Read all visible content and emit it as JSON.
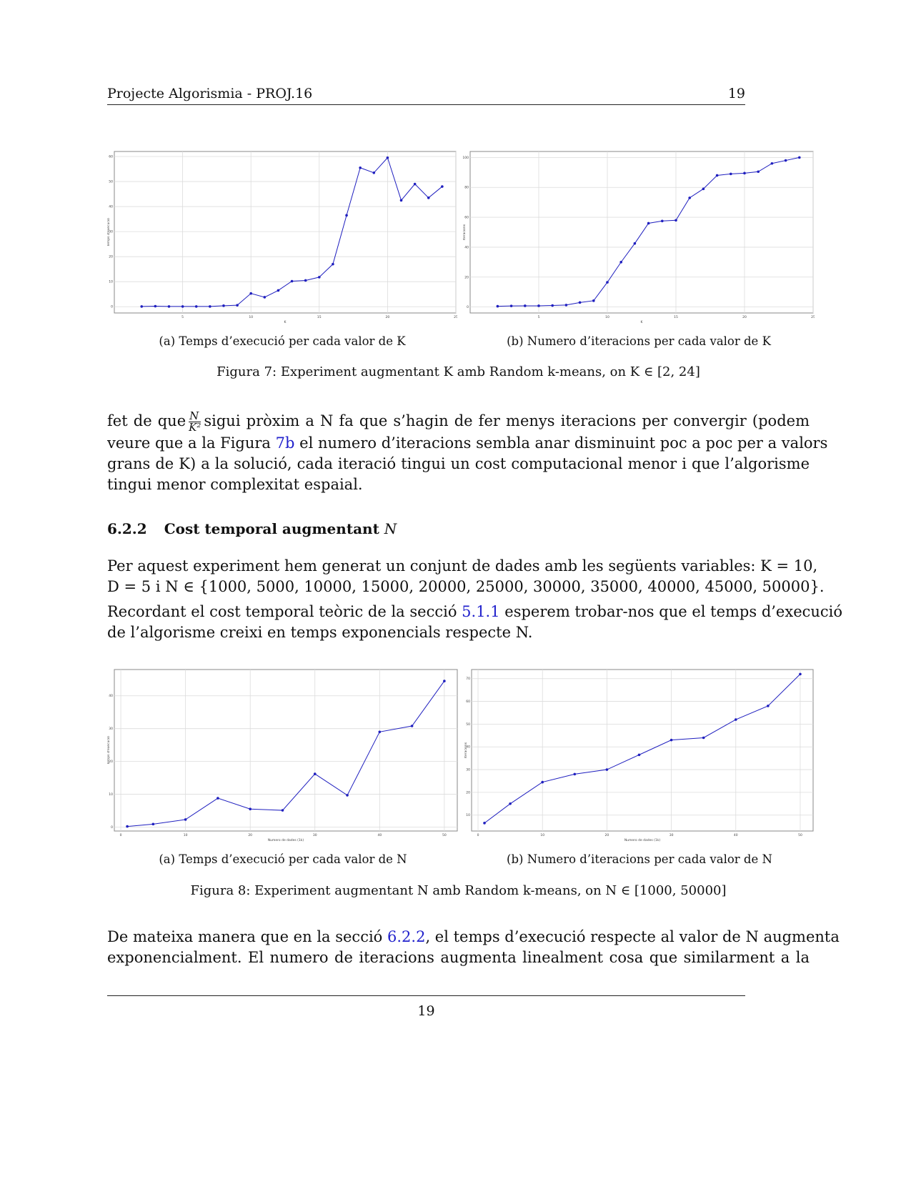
{
  "header": {
    "left": "Projecte Algorismia - PROJ.16",
    "right": "19"
  },
  "figure7": {
    "caption": "Figura 7: Experiment augmentant K amb Random k-means, on K ∈ [2, 24]",
    "sub_a": "(a) Temps d’execució per cada valor de K",
    "sub_b": "(b) Numero d’iteracions per cada valor de K"
  },
  "figure8": {
    "caption": "Figura 8: Experiment augmentant N amb Random k-means, on N ∈ [1000, 50000]",
    "sub_a": "(a) Temps d’execució per cada valor de N",
    "sub_b": "(b) Numero d’iteracions per cada valor de N"
  },
  "para1": {
    "l1a": "fet de que",
    "frac_num": "N",
    "frac_den": "K²",
    "l1b": "sigui pròxim a N fa que s’hagin de fer menys iteracions per convergir (podem",
    "l2a": "veure que a la Figura",
    "l2link": "7b",
    "l2b": "el numero d’iteracions sembla anar disminuint poc a poc per a valors",
    "l3": "grans de K) a la solució, cada iteració tingui un cost computacional menor i que l’algorisme",
    "l4": "tingui menor complexitat espaial."
  },
  "section": {
    "number": "6.2.2",
    "title": "Cost temporal augmentant",
    "var": "N"
  },
  "para2": {
    "l1": "Per aquest experiment hem generat un conjunt de dades amb les següents variables: K = 10,",
    "l2": "D = 5 i N ∈ {1000, 5000, 10000, 15000, 20000, 25000, 30000, 35000, 40000, 45000, 50000}."
  },
  "para3": {
    "l1a": "Recordant el cost temporal teòric de la secció",
    "l1link": "5.1.1",
    "l1b": "esperem trobar-nos que el temps d’execució",
    "l2": "de l’algorisme creixi en temps exponencials respecte N."
  },
  "para4": {
    "l1a": "De mateixa manera que en la secció",
    "l1link": "6.2.2",
    "l1b": ", el temps d’execució respecte al valor de N augmenta",
    "l2": "exponencialment.  El numero de iteracions augmenta linealment cosa que similarment a la"
  },
  "footer": {
    "page": "19"
  },
  "chart_data": [
    {
      "id": "fig7a",
      "type": "line",
      "x": [
        2,
        3,
        4,
        5,
        6,
        7,
        8,
        9,
        10,
        11,
        12,
        13,
        14,
        15,
        16,
        17,
        18,
        19,
        20,
        21,
        22,
        23,
        24
      ],
      "series": [
        {
          "values": [
            0.1,
            0.2,
            0.1,
            0.1,
            0.1,
            0.1,
            0.4,
            0.6,
            5.3,
            3.8,
            6.5,
            10.2,
            10.5,
            11.8,
            17.0,
            36.5,
            55.5,
            53.5,
            59.5,
            42.5,
            49.0,
            43.5,
            48.0
          ]
        }
      ],
      "xlim": [
        0,
        25
      ],
      "ylim": [
        -2.5,
        62
      ],
      "xticks": [
        5,
        10,
        15,
        20,
        25
      ],
      "yticks": [
        0,
        10,
        20,
        30,
        40,
        50,
        60
      ],
      "xlabel": "K",
      "ylabel": "Temps d'execució",
      "grid": true,
      "color": "#1f1fbf"
    },
    {
      "id": "fig7b",
      "type": "line",
      "x": [
        2,
        3,
        4,
        5,
        6,
        7,
        8,
        9,
        10,
        11,
        12,
        13,
        14,
        15,
        16,
        17,
        18,
        19,
        20,
        21,
        22,
        23,
        24
      ],
      "series": [
        {
          "values": [
            0.5,
            0.7,
            0.8,
            0.8,
            1.0,
            1.3,
            3.0,
            4.2,
            16.5,
            30.0,
            42.5,
            56.0,
            57.5,
            58.0,
            73.0,
            79.0,
            88.0,
            89.0,
            89.5,
            90.5,
            96.0,
            98.0,
            100.0
          ]
        }
      ],
      "xlim": [
        0,
        25
      ],
      "ylim": [
        -4,
        104
      ],
      "xticks": [
        5,
        10,
        15,
        20,
        25
      ],
      "yticks": [
        0,
        20,
        40,
        60,
        80,
        100
      ],
      "xlabel": "K",
      "ylabel": "Iteracions",
      "grid": true,
      "color": "#1f1fbf"
    },
    {
      "id": "fig8a",
      "type": "line",
      "x": [
        1,
        5,
        10,
        15,
        20,
        25,
        30,
        35,
        40,
        45,
        50
      ],
      "series": [
        {
          "values": [
            0.2,
            0.9,
            2.3,
            8.8,
            5.5,
            5.1,
            16.2,
            9.7,
            29.0,
            30.8,
            44.5
          ]
        }
      ],
      "xlim": [
        -1,
        52
      ],
      "ylim": [
        -1.2,
        48
      ],
      "xticks": [
        0,
        10,
        20,
        30,
        40,
        50
      ],
      "yticks": [
        0,
        10,
        20,
        30,
        40
      ],
      "xlabel": "Numero de dades (1k)",
      "ylabel": "Temps d'execució",
      "grid": true,
      "color": "#1f1fbf"
    },
    {
      "id": "fig8b",
      "type": "line",
      "x": [
        1,
        5,
        10,
        15,
        20,
        25,
        30,
        35,
        40,
        45,
        50
      ],
      "series": [
        {
          "values": [
            6.5,
            15.0,
            24.5,
            28.0,
            30.0,
            36.5,
            43.0,
            44.0,
            52.0,
            58.0,
            72.0
          ]
        }
      ],
      "xlim": [
        -1,
        52
      ],
      "ylim": [
        3,
        74
      ],
      "xticks": [
        0,
        10,
        20,
        30,
        40,
        50
      ],
      "yticks": [
        10,
        20,
        30,
        40,
        50,
        60,
        70
      ],
      "xlabel": "Numero de dades (1k)",
      "ylabel": "Iteracions",
      "grid": true,
      "color": "#1f1fbf"
    }
  ]
}
